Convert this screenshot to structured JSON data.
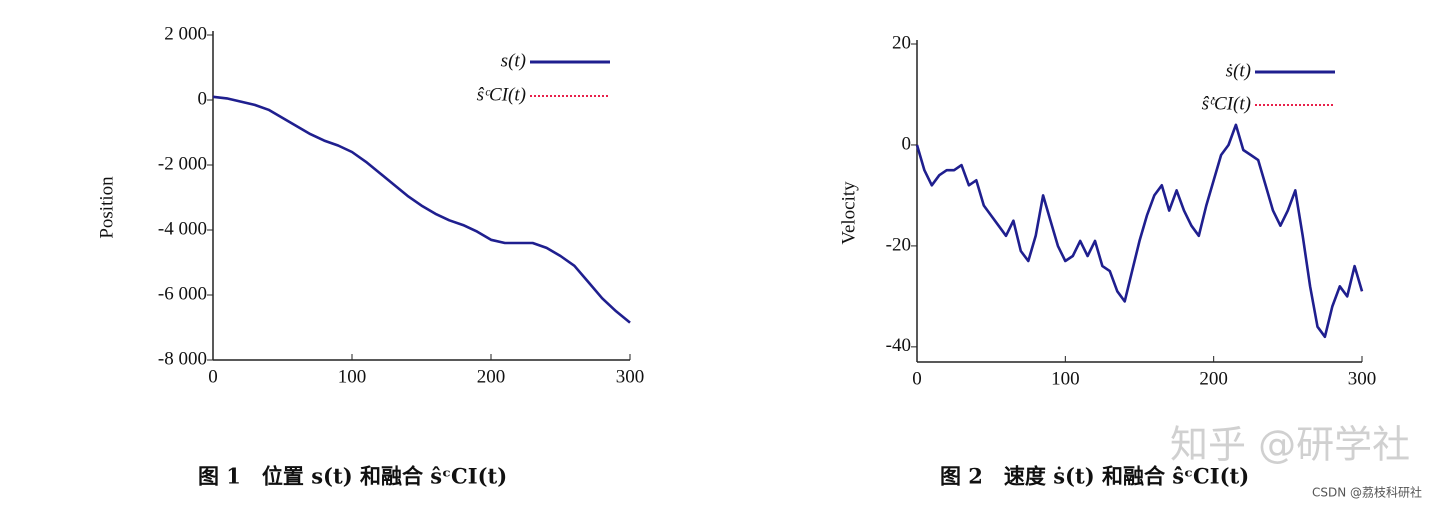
{
  "chart_data": [
    {
      "type": "line",
      "ylabel": "Position",
      "x": [
        0,
        10,
        20,
        30,
        40,
        50,
        60,
        70,
        80,
        90,
        100,
        110,
        120,
        130,
        140,
        150,
        160,
        170,
        180,
        190,
        200,
        210,
        220,
        230,
        240,
        250,
        260,
        270,
        280,
        290,
        300
      ],
      "series": [
        {
          "name": "ŝᶜCI(t)",
          "color": "#e8204a",
          "style": "dotted",
          "values": [
            100,
            50,
            -50,
            -150,
            -300,
            -550,
            -800,
            -1050,
            -1250,
            -1400,
            -1600,
            -1900,
            -2250,
            -2600,
            -2950,
            -3250,
            -3500,
            -3700,
            -3850,
            -4050,
            -4300,
            -4400,
            -4400,
            -4400,
            -4550,
            -4800,
            -5100,
            -5600,
            -6100,
            -6500,
            -6850
          ]
        },
        {
          "name": "s(t)",
          "color": "#1f1f8f",
          "style": "solid",
          "values": [
            100,
            50,
            -50,
            -150,
            -300,
            -550,
            -800,
            -1050,
            -1250,
            -1400,
            -1600,
            -1900,
            -2250,
            -2600,
            -2950,
            -3250,
            -3500,
            -3700,
            -3850,
            -4050,
            -4300,
            -4400,
            -4400,
            -4400,
            -4550,
            -4800,
            -5100,
            -5600,
            -6100,
            -6500,
            -6850
          ]
        }
      ],
      "xlim": [
        0,
        300
      ],
      "xticks": [
        0,
        100,
        200,
        300
      ],
      "ylim": [
        -8000,
        2000
      ],
      "yticks": [
        {
          "value": -8000,
          "label": "-8 000"
        },
        {
          "value": -6000,
          "label": "-6 000"
        },
        {
          "value": -4000,
          "label": "-4 000"
        },
        {
          "value": -2000,
          "label": "-2 000"
        },
        0,
        {
          "value": 2000,
          "label": "2 000"
        }
      ]
    },
    {
      "type": "line",
      "ylabel": "Velocity",
      "x": [
        0,
        5,
        10,
        15,
        20,
        25,
        30,
        35,
        40,
        45,
        50,
        55,
        60,
        65,
        70,
        75,
        80,
        85,
        90,
        95,
        100,
        105,
        110,
        115,
        120,
        125,
        130,
        135,
        140,
        145,
        150,
        155,
        160,
        165,
        170,
        175,
        180,
        185,
        190,
        195,
        200,
        205,
        210,
        215,
        220,
        225,
        230,
        235,
        240,
        245,
        250,
        255,
        260,
        265,
        270,
        275,
        280,
        285,
        290,
        295,
        300
      ],
      "series": [
        {
          "name": "ŝ̇ᶜCI(t)",
          "color": "#e8204a",
          "style": "dotted",
          "values": [
            0,
            -5,
            -8,
            -6,
            -5,
            -5,
            -4,
            -8,
            -7,
            -12,
            -14,
            -16,
            -18,
            -15,
            -21,
            -23,
            -18,
            -10,
            -15,
            -20,
            -23,
            -22,
            -19,
            -22,
            -19,
            -24,
            -25,
            -29,
            -31,
            -25,
            -19,
            -14,
            -10,
            -8,
            -13,
            -9,
            -13,
            -16,
            -18,
            -12,
            -7,
            -2,
            0,
            4,
            -1,
            -2,
            -3,
            -8,
            -13,
            -16,
            -13,
            -9,
            -18,
            -28,
            -36,
            -38,
            -32,
            -28,
            -30,
            -24,
            -29
          ]
        },
        {
          "name": "ṡ(t)",
          "color": "#1f1f8f",
          "style": "solid",
          "values": [
            0,
            -5,
            -8,
            -6,
            -5,
            -5,
            -4,
            -8,
            -7,
            -12,
            -14,
            -16,
            -18,
            -15,
            -21,
            -23,
            -18,
            -10,
            -15,
            -20,
            -23,
            -22,
            -19,
            -22,
            -19,
            -24,
            -25,
            -29,
            -31,
            -25,
            -19,
            -14,
            -10,
            -8,
            -13,
            -9,
            -13,
            -16,
            -18,
            -12,
            -7,
            -2,
            0,
            4,
            -1,
            -2,
            -3,
            -8,
            -13,
            -16,
            -13,
            -9,
            -18,
            -28,
            -36,
            -38,
            -32,
            -28,
            -30,
            -24,
            -29
          ]
        }
      ],
      "xlim": [
        0,
        300
      ],
      "xticks": [
        0,
        100,
        200,
        300
      ],
      "ylim": [
        -43,
        20
      ],
      "yticks": [
        -40,
        -20,
        0,
        20
      ]
    }
  ],
  "captions": [
    "图 1　位置 s(t) 和融合 ŝᶜCI(t)",
    "图 2　速度 ṡ(t) 和融合 ŝ̇ᶜCI(t)"
  ],
  "watermark": "知乎 @研学社",
  "credit": "CSDN @荔枝科研社"
}
